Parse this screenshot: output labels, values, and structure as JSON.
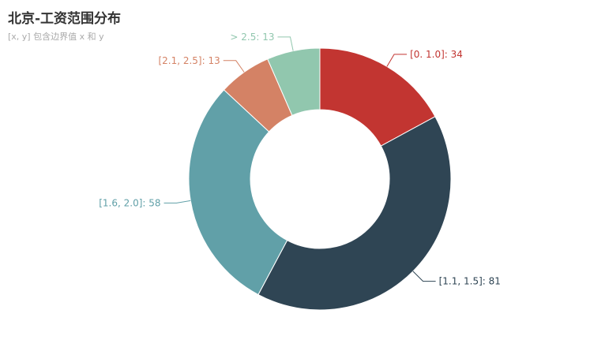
{
  "title": "北京-工资范围分布",
  "subtitle": "[x, y] 包含边界值 x 和 y",
  "chart_data": {
    "type": "pie",
    "donut": true,
    "title": "北京-工资范围分布",
    "subtitle": "[x, y] 包含边界值 x 和 y",
    "slices": [
      {
        "label": "[0. 1.0]: 34",
        "name": "[0. 1.0]",
        "value": 34,
        "color": "#c23531"
      },
      {
        "label": "[1.1, 1.5]: 81",
        "name": "[1.1, 1.5]",
        "value": 81,
        "color": "#2f4554"
      },
      {
        "label": "[1.6, 2.0]: 58",
        "name": "[1.6, 2.0]",
        "value": 58,
        "color": "#61a0a8"
      },
      {
        "label": "[2.1, 2.5]: 13",
        "name": "[2.1, 2.5]",
        "value": 13,
        "color": "#d48265"
      },
      {
        "label": "> 2.5: 13",
        "name": "> 2.5",
        "value": 13,
        "color": "#91c7ae"
      }
    ]
  }
}
